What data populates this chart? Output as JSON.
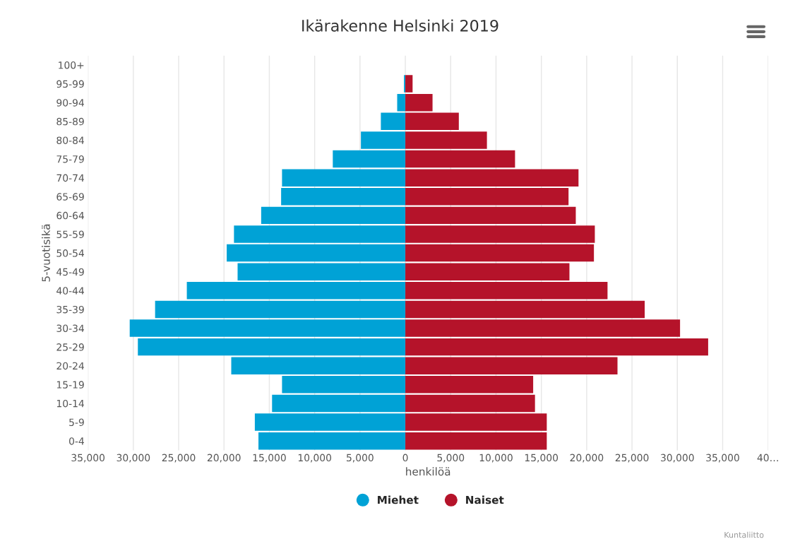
{
  "chart_data": {
    "type": "bar",
    "orientation": "horizontal",
    "title": "Ikärakenne Helsinki 2019",
    "xlabel": "henkilöä",
    "ylabel": "5-vuotisikä",
    "categories": [
      "100+",
      "95-99",
      "90-94",
      "85-89",
      "80-84",
      "75-79",
      "70-74",
      "65-69",
      "60-64",
      "55-59",
      "50-54",
      "45-49",
      "40-44",
      "35-39",
      "30-34",
      "25-29",
      "20-24",
      "15-19",
      "10-14",
      "5-9",
      "0-4"
    ],
    "series": [
      {
        "name": "Miehet",
        "color": "#00a2d6",
        "values": [
          0,
          -150,
          -900,
          -2700,
          -4900,
          -8000,
          -13600,
          -13700,
          -15900,
          -18900,
          -19700,
          -18500,
          -24100,
          -27600,
          -30400,
          -29500,
          -19200,
          -13600,
          -14700,
          -16600,
          -16200
        ]
      },
      {
        "name": "Naiset",
        "color": "#b5132a",
        "values": [
          0,
          800,
          3000,
          5900,
          9000,
          12100,
          19100,
          18000,
          18800,
          20900,
          20800,
          18100,
          22300,
          26400,
          30300,
          33400,
          23400,
          14100,
          14300,
          15600,
          15600
        ]
      }
    ],
    "xlim": [
      -35000,
      40000
    ],
    "xticks": [
      {
        "value": -35000,
        "label": "35,000"
      },
      {
        "value": -30000,
        "label": "30,000"
      },
      {
        "value": -25000,
        "label": "25,000"
      },
      {
        "value": -20000,
        "label": "20,000"
      },
      {
        "value": -15000,
        "label": "15,000"
      },
      {
        "value": -10000,
        "label": "10,000"
      },
      {
        "value": -5000,
        "label": "5,000"
      },
      0,
      {
        "value": 5000,
        "label": "5,000"
      },
      {
        "value": 10000,
        "label": "10,000"
      },
      {
        "value": 15000,
        "label": "15,000"
      },
      {
        "value": 20000,
        "label": "20,000"
      },
      {
        "value": 25000,
        "label": "25,000"
      },
      {
        "value": 30000,
        "label": "30,000"
      },
      {
        "value": 35000,
        "label": "35,000"
      },
      {
        "value": 40000,
        "label": "40…"
      }
    ],
    "grid": "x",
    "legend": "bottom",
    "stacked": true,
    "annotations": [
      "Kuntaliitto"
    ]
  }
}
